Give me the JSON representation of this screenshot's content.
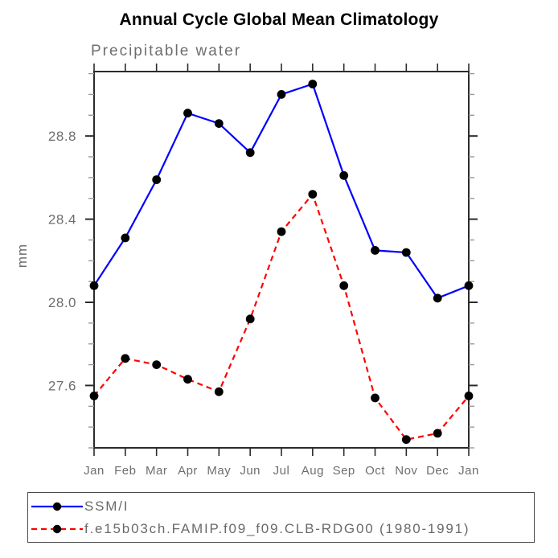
{
  "title": "Annual Cycle Global Mean Climatology",
  "subtitle": "Precipitable water",
  "ylabel": "mm",
  "colors": {
    "axis": "#2b2b2b",
    "minor_tick": "#999999",
    "text_gray": "#6e6e6e",
    "series_blue": "#0000ff",
    "series_red": "#ff0000",
    "marker": "#000000",
    "legend_border": "#4a4a4a"
  },
  "legend": {
    "entries": [
      {
        "label": "SSM/I",
        "color": "#0000ff",
        "style": "solid"
      },
      {
        "label": "f.e15b03ch.FAMIP.f09_f09.CLB-RDG00 (1980-1991)",
        "color": "#ff0000",
        "style": "dashed"
      }
    ]
  },
  "chart_data": {
    "type": "line",
    "title": "Annual Cycle Global Mean Climatology",
    "subtitle": "Precipitable water",
    "xlabel": "",
    "ylabel": "mm",
    "categories": [
      "Jan",
      "Feb",
      "Mar",
      "Apr",
      "May",
      "Jun",
      "Jul",
      "Aug",
      "Sep",
      "Oct",
      "Nov",
      "Dec",
      "Jan"
    ],
    "series": [
      {
        "name": "SSM/I",
        "color": "#0000ff",
        "style": "solid",
        "values": [
          28.08,
          28.31,
          28.59,
          28.91,
          28.86,
          28.72,
          29.0,
          29.05,
          28.61,
          28.25,
          28.24,
          28.02,
          28.08
        ]
      },
      {
        "name": "f.e15b03ch.FAMIP.f09_f09.CLB-RDG00 (1980-1991)",
        "color": "#ff0000",
        "style": "dashed",
        "values": [
          27.55,
          27.73,
          27.7,
          27.63,
          27.57,
          27.92,
          28.34,
          28.52,
          28.08,
          27.54,
          27.34,
          27.37,
          27.55
        ]
      }
    ],
    "marker": "circle",
    "marker_color": "#000000",
    "ylim": [
      27.3,
      29.11
    ],
    "yticks": [
      27.6,
      28.0,
      28.4,
      28.8
    ],
    "ytick_labels": [
      "27.6",
      "28.0",
      "28.4",
      "28.8"
    ],
    "minor_tick_step": 0.1,
    "grid": false,
    "legend_position": "bottom-left-box"
  }
}
